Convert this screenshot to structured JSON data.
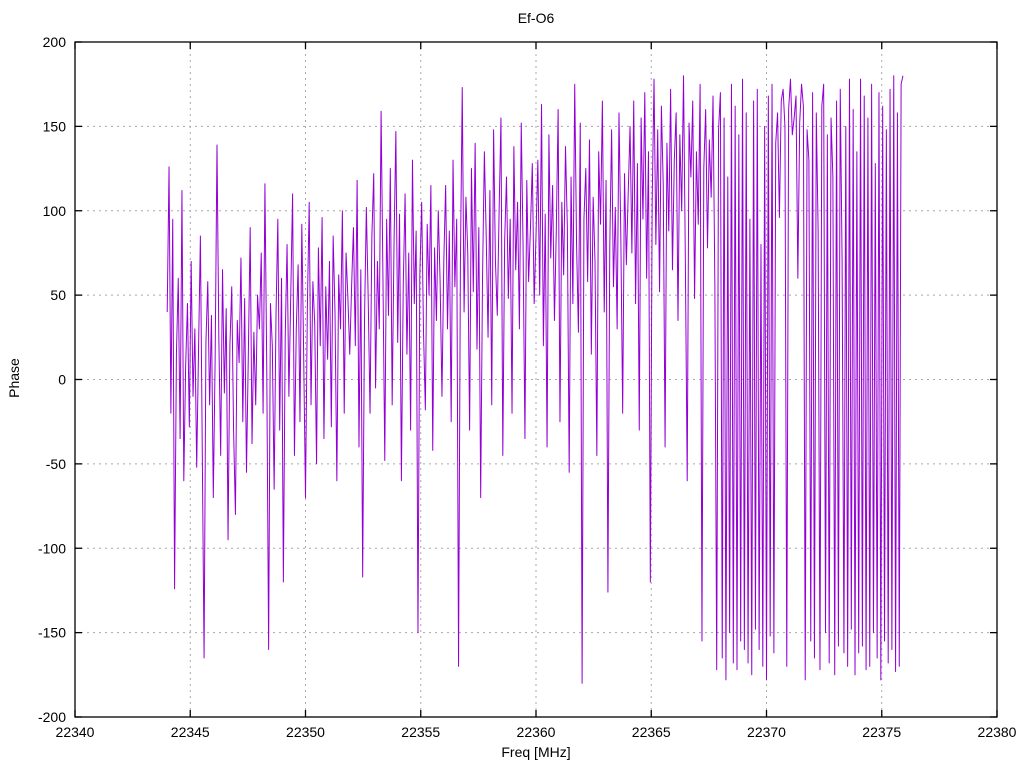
{
  "chart_data": {
    "type": "line",
    "title": "Ef-O6",
    "xlabel": "Freq [MHz]",
    "ylabel": "Phase",
    "xlim": [
      22340,
      22380
    ],
    "ylim": [
      -200,
      200
    ],
    "x_ticks": [
      22340,
      22345,
      22350,
      22355,
      22360,
      22365,
      22370,
      22375,
      22380
    ],
    "y_ticks": [
      -200,
      -150,
      -100,
      -50,
      0,
      50,
      100,
      150,
      200
    ],
    "grid": "dashed",
    "legend": "none",
    "line_color": "#9400D3",
    "grid_color": "#a8a8a8",
    "border_color": "#000000",
    "series": [
      {
        "name": "phase",
        "x_start": 22344.0,
        "x_step": 0.08,
        "values": [
          40,
          126,
          -20,
          95,
          -124,
          15,
          60,
          -35,
          112,
          -60,
          8,
          45,
          -28,
          70,
          -10,
          30,
          -52,
          18,
          85,
          -40,
          -165,
          22,
          58,
          -15,
          38,
          -70,
          12,
          139,
          25,
          -45,
          65,
          -8,
          42,
          -95,
          20,
          55,
          -30,
          -80,
          35,
          10,
          72,
          -25,
          48,
          -55,
          15,
          90,
          -38,
          28,
          -15,
          50,
          30,
          75,
          -20,
          116,
          5,
          -160,
          45,
          20,
          -65,
          38,
          95,
          -30,
          60,
          -120,
          25,
          80,
          -10,
          50,
          110,
          -45,
          30,
          68,
          -25,
          92,
          15,
          -70,
          42,
          105,
          -15,
          58,
          33,
          -50,
          78,
          20,
          96,
          -35,
          55,
          12,
          70,
          -28,
          85,
          40,
          -60,
          62,
          30,
          100,
          -20,
          75,
          48,
          15,
          55,
          90,
          20,
          118,
          -40,
          65,
          -117,
          35,
          102,
          48,
          -20,
          85,
          122,
          -5,
          70,
          30,
          159,
          60,
          -48,
          95,
          38,
          125,
          -15,
          80,
          147,
          22,
          98,
          -60,
          55,
          110,
          15,
          75,
          -30,
          130,
          45,
          88,
          -150,
          62,
          105,
          28,
          -18,
          92,
          50,
          115,
          -42,
          78,
          35,
          100,
          58,
          -10,
          70,
          115,
          30,
          88,
          -25,
          130,
          55,
          95,
          -170,
          68,
          173,
          40,
          108,
          75,
          -30,
          125,
          52,
          140,
          18,
          90,
          -70,
          60,
          135,
          85,
          25,
          112,
          -15,
          148,
          70,
          38,
          100,
          155,
          -45,
          82,
          120,
          48,
          95,
          -20,
          138,
          65,
          105,
          30,
          152,
          78,
          -35,
          118,
          58,
          90,
          128,
          45,
          85,
          130,
          50,
          163,
          20,
          98,
          -40,
          145,
          72,
          115,
          35,
          88,
          160,
          -25,
          105,
          62,
          138,
          90,
          -55,
          120,
          45,
          175,
          80,
          28,
          152,
          -180,
          95,
          125,
          58,
          142,
          15,
          108,
          70,
          -45,
          135,
          92,
          165,
          40,
          118,
          -126,
          78,
          148,
          55,
          102,
          30,
          158,
          85,
          -20,
          122,
          68,
          110,
          150,
          75,
          165,
          45,
          128,
          -30,
          155,
          95,
          170,
          60,
          135,
          -120,
          105,
          178,
          80,
          148,
          52,
          162,
          115,
          -40,
          140,
          88,
          172,
          65,
          130,
          158,
          35,
          145,
          100,
          180,
          70,
          -60,
          152,
          120,
          165,
          48,
          135,
          92,
          175,
          -155,
          125,
          160,
          78,
          142,
          108,
          168,
          55,
          -172,
          148,
          170,
          -165,
          155,
          -178,
          120,
          -150,
          175,
          -168,
          162,
          -172,
          145,
          -155,
          178,
          -160,
          158,
          -168,
          95,
          -175,
          165,
          -148,
          172,
          -160,
          80,
          -170,
          150,
          -178,
          168,
          -152,
          175,
          -162,
          140,
          158,
          96,
          165,
          172,
          150,
          -170,
          160,
          178,
          145,
          155,
          168,
          60,
          152,
          175,
          162,
          -178,
          148,
          130,
          -155,
          170,
          -165,
          158,
          88,
          -172,
          162,
          175,
          -150,
          145,
          -168,
          155,
          120,
          -175,
          165,
          -158,
          172,
          70,
          -162,
          150,
          -170,
          178,
          -148,
          160,
          -175,
          135,
          -162,
          178,
          -158,
          168,
          -172,
          155,
          -170,
          175,
          -150,
          128,
          -165,
          170,
          -178,
          162,
          -155,
          148,
          -168,
          172,
          -160,
          180,
          -173,
          158,
          -170,
          175,
          180
        ]
      }
    ]
  },
  "layout_labels": {
    "note": ""
  }
}
